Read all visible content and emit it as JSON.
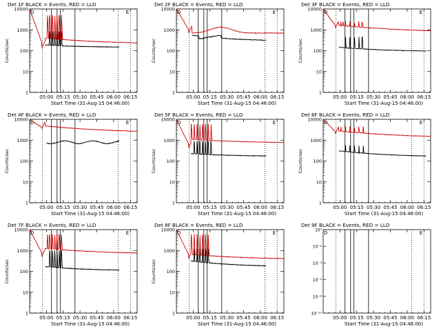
{
  "colors": {
    "events": "#000000",
    "lld": "#cc0000",
    "background": "#ffffff"
  },
  "common": {
    "xlabel": "Start Time (31-Aug-15 04:46:00)",
    "ylabel": "Counts/sec",
    "xticks": [
      "05:00",
      "05:15",
      "05:30",
      "05:45",
      "06:00",
      "06:15"
    ],
    "yticks": [
      "1",
      "10",
      "100",
      "1000",
      "10000"
    ],
    "yticks_special": [
      "10⁻¹¹",
      "10⁻⁸",
      "10⁻⁶",
      "10⁻⁴",
      "10⁻²",
      "10⁰"
    ],
    "x_range_minutes": [
      0,
      96
    ],
    "y_log_range": [
      0,
      4
    ],
    "vlines_solid_min": [
      19.5,
      24.5,
      27.5,
      40.5
    ],
    "vlines_dotted_min": [
      11.5,
      79,
      90
    ],
    "markers": [
      "D",
      "E"
    ]
  },
  "chart_data": [
    {
      "id": "det1",
      "type": "line",
      "title": "Det 1F BLACK = Events, RED = LLD",
      "series": [
        {
          "name": "Events",
          "start": 14,
          "end": 80,
          "base": 160,
          "decay": 45,
          "spikes": [
            18,
            20.5,
            22.5,
            24.5,
            26.5,
            28.5
          ],
          "spike_peak": 850,
          "pre_drop": false
        },
        {
          "name": "LLD",
          "start": 0,
          "end": 96,
          "base": 300,
          "decay": 260,
          "spikes": [
            16,
            18,
            20.5,
            22.5,
            24.5,
            26.5,
            28.5
          ],
          "spike_peak": 5000,
          "pre_drop": true,
          "dip": 130
        }
      ]
    },
    {
      "id": "det2",
      "type": "line",
      "title": "Det 2F BLACK = Events, RED = LLD",
      "series": [
        {
          "name": "Events",
          "start": 14,
          "end": 80,
          "base": 380,
          "decay": 260,
          "spikes": [],
          "spike_peak": 0,
          "steps": true,
          "pre_drop": false
        },
        {
          "name": "LLD",
          "start": 0,
          "end": 96,
          "base": 700,
          "decay": 600,
          "spikes": [],
          "spike_peak": 0,
          "hump": true,
          "pre_drop": true,
          "dip": 700
        }
      ]
    },
    {
      "id": "det3",
      "type": "line",
      "title": "Det 3F BLACK = Events, RED = LLD",
      "series": [
        {
          "name": "Events",
          "start": 14,
          "end": 92,
          "base": 110,
          "decay": 55,
          "spikes": [
            20,
            24,
            28,
            32,
            35
          ],
          "spike_peak": 450,
          "pre_drop": false
        },
        {
          "name": "LLD",
          "start": 0,
          "end": 96,
          "base": 1200,
          "decay": 1200,
          "spikes": [
            16,
            18,
            20,
            24,
            28,
            32,
            35
          ],
          "spike_peak": 2500,
          "pre_drop": true,
          "dip": 1200
        }
      ]
    },
    {
      "id": "det4",
      "type": "line",
      "title": "Det 4F BLACK = Events, RED = LLD",
      "series": [
        {
          "name": "Events",
          "start": 15,
          "end": 80,
          "base": 800,
          "decay": 780,
          "spikes": [],
          "spike_peak": 0,
          "flat": true,
          "pre_drop": false
        },
        {
          "name": "LLD",
          "start": 0,
          "end": 96,
          "base": 3500,
          "decay": 3500,
          "spikes": [],
          "spike_peak": 0,
          "pre_drop": true,
          "dip": 3500
        }
      ]
    },
    {
      "id": "det5",
      "type": "line",
      "title": "Det 5F BLACK = Events, RED = LLD",
      "series": [
        {
          "name": "Events",
          "start": 13,
          "end": 80,
          "base": 190,
          "decay": 60,
          "spikes": [
            16,
            18.5,
            21,
            23.5,
            26,
            28.5,
            31
          ],
          "spike_peak": 900,
          "pre_drop": false
        },
        {
          "name": "LLD",
          "start": 0,
          "end": 96,
          "base": 900,
          "decay": 520,
          "spikes": [
            13.5,
            16,
            18.5,
            21,
            23.5,
            26,
            28.5,
            31
          ],
          "spike_peak": 6000,
          "pre_drop": true,
          "dip": 400
        }
      ]
    },
    {
      "id": "det6",
      "type": "line",
      "title": "Det 6F BLACK = Events, RED = LLD",
      "series": [
        {
          "name": "Events",
          "start": 14,
          "end": 92,
          "base": 210,
          "decay": 150,
          "spikes": [
            20,
            24,
            28,
            32,
            36
          ],
          "spike_peak": 550,
          "pre_drop": false
        },
        {
          "name": "LLD",
          "start": 0,
          "end": 96,
          "base": 2000,
          "decay": 2000,
          "spikes": [
            16,
            20,
            24,
            28,
            32,
            36
          ],
          "spike_peak": 4500,
          "pre_drop": true,
          "dip": 2000
        }
      ]
    },
    {
      "id": "det7",
      "type": "line",
      "title": "Det 7F BLACK = Events, RED = LLD",
      "series": [
        {
          "name": "Events",
          "start": 14,
          "end": 80,
          "base": 130,
          "decay": 60,
          "spikes": [
            18,
            20.5,
            22.5,
            24.5,
            26.5,
            28.5
          ],
          "spike_peak": 1000,
          "pre_drop": false
        },
        {
          "name": "LLD",
          "start": 0,
          "end": 96,
          "base": 950,
          "decay": 800,
          "spikes": [
            16,
            18,
            20.5,
            22.5,
            24.5,
            26.5,
            28.5
          ],
          "spike_peak": 6000,
          "pre_drop": true,
          "dip": 500
        }
      ]
    },
    {
      "id": "det8",
      "type": "line",
      "title": "Det 8F BLACK = Events, RED = LLD",
      "series": [
        {
          "name": "Events",
          "start": 13,
          "end": 80,
          "base": 220,
          "decay": 150,
          "spikes": [
            16,
            18.5,
            21,
            23.5,
            26,
            28.5
          ],
          "spike_peak": 1200,
          "pre_drop": false
        },
        {
          "name": "LLD",
          "start": 0,
          "end": 96,
          "base": 500,
          "decay": 380,
          "spikes": [
            13.5,
            16,
            18.5,
            21,
            23.5,
            26,
            28.5
          ],
          "spike_peak": 6000,
          "pre_drop": true,
          "dip": 400
        }
      ]
    },
    {
      "id": "det9",
      "type": "line",
      "title": "Det 9F BLACK = Events, RED = LLD",
      "special_y": true,
      "series": []
    }
  ]
}
